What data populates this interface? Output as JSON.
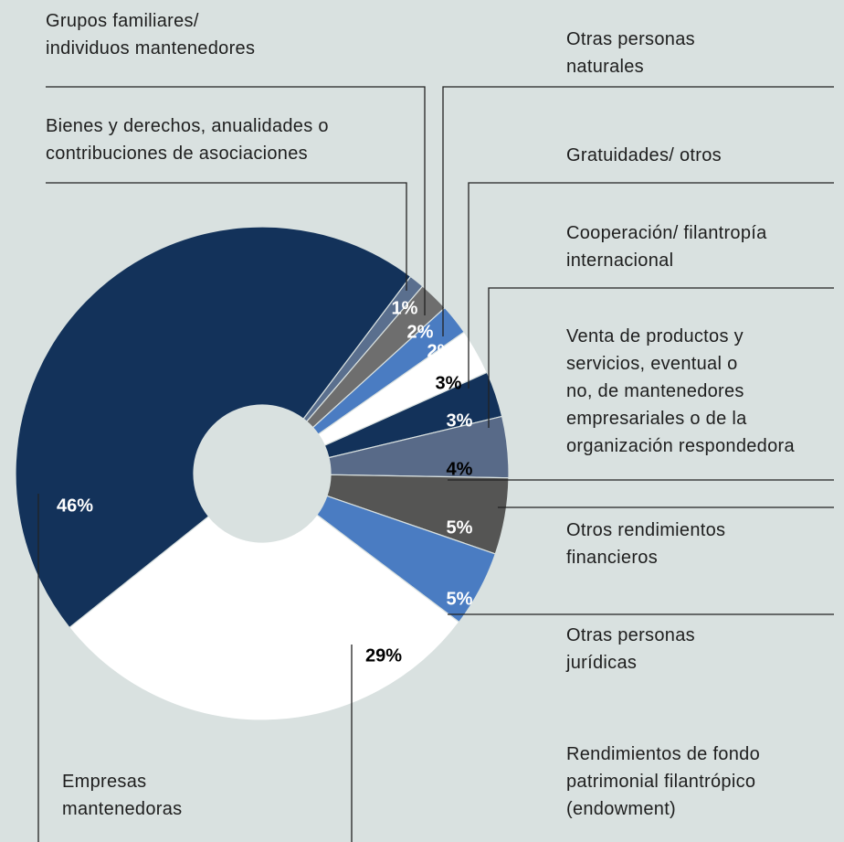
{
  "chart_data": {
    "type": "pie",
    "categories": [
      "Bienes y derechos, anualidades o\ncontribuciones de asociaciones",
      "Grupos familiares/\nindividuos mantenedores",
      "Otras personas\nnaturales",
      "Gratuidades/ otros",
      "Cooperación/ filantropía\ninternacional",
      "Venta de productos y\nservicios, eventual o\nno, de mantenedores\nempresariales o de la\norganización respondedora",
      "Otros rendimientos\nfinancieros",
      "Otras personas\njurídicas",
      "Rendimientos de fondo\npatrimonial filantrópico\n(endowment)",
      "Empresas\nmantenedoras"
    ],
    "values": [
      1,
      2,
      2,
      3,
      3,
      4,
      5,
      5,
      29,
      46
    ],
    "value_labels": [
      "1%",
      "2%",
      "2%",
      "3%",
      "3%",
      "4%",
      "5%",
      "5%",
      "29%",
      "46%"
    ],
    "colors": [
      "#5a6f8e",
      "#6e6e6e",
      "#4a7cc2",
      "#ffffff",
      "#13325a",
      "#586a88",
      "#555554",
      "#4a7cc2",
      "#ffffff",
      "#13325a"
    ]
  }
}
